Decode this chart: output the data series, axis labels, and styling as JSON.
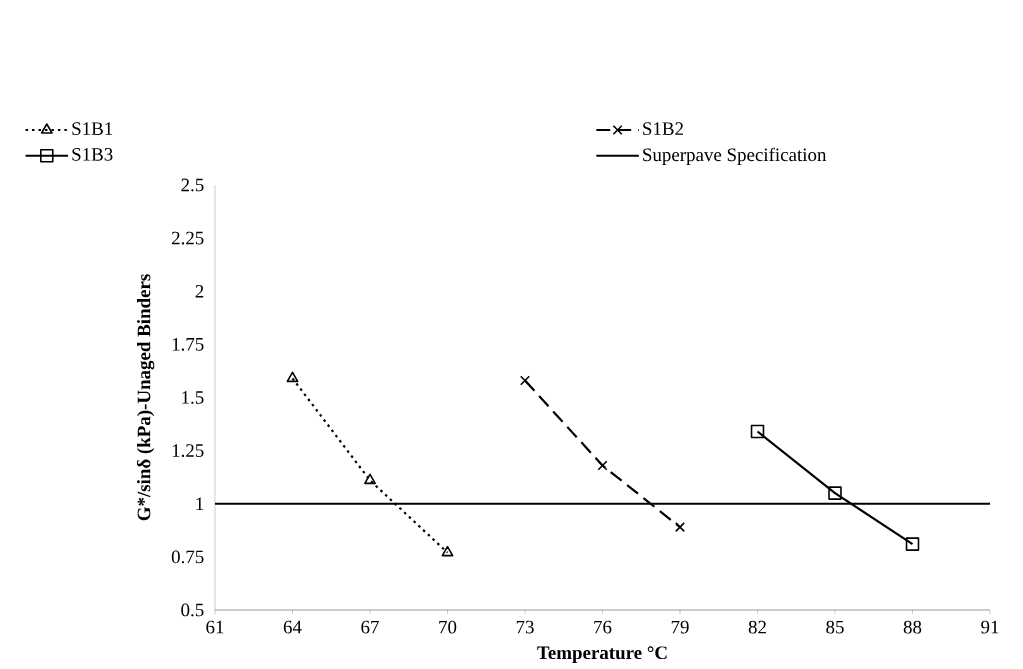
{
  "chart_data": {
    "type": "line",
    "xlabel": "Temperature °C",
    "ylabel": "G*/sinδ (kPa)-Unaged Binders",
    "series": [
      {
        "name": "S1B1",
        "color": "#000000",
        "marker": "triangle",
        "line_style": "dotted",
        "x": [
          64,
          67,
          70
        ],
        "values": [
          1.59,
          1.11,
          0.77
        ]
      },
      {
        "name": "S1B2",
        "color": "#000000",
        "marker": "cross",
        "line_style": "dashed",
        "x": [
          73,
          76,
          79
        ],
        "values": [
          1.58,
          1.18,
          0.89
        ]
      },
      {
        "name": "S1B3",
        "color": "#000000",
        "marker": "square",
        "line_style": "solid",
        "x": [
          82,
          85,
          88
        ],
        "values": [
          1.34,
          1.05,
          0.81
        ]
      }
    ],
    "ref_lines": [
      {
        "axis": "y",
        "value": 1,
        "label": "Superpave Specification",
        "color": "#000000",
        "line_style": "solid"
      }
    ],
    "xlim": [
      61,
      91
    ],
    "xticks": [
      61,
      64,
      67,
      70,
      73,
      76,
      79,
      82,
      85,
      88,
      91
    ],
    "ylim": [
      0.5,
      2.5
    ],
    "yticks": [
      0.5,
      0.75,
      1,
      1.25,
      1.5,
      1.75,
      2,
      2.25,
      2.5
    ],
    "grid": false,
    "legend": "top"
  }
}
